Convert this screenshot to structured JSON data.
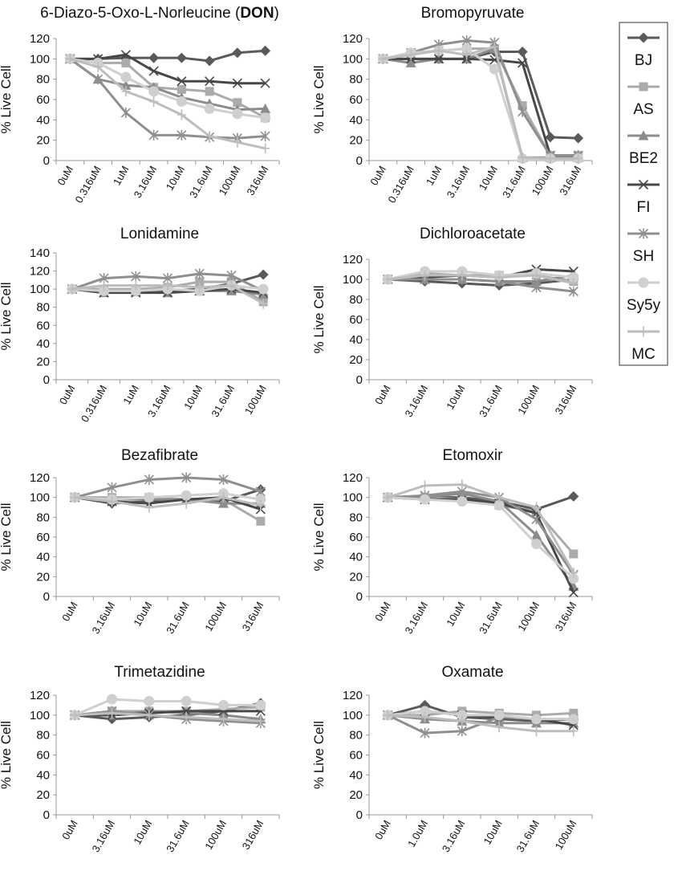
{
  "legend": {
    "position": "right",
    "entries": [
      {
        "name": "BJ",
        "color": "#5a5a5a",
        "marker": "diamond"
      },
      {
        "name": "AS",
        "color": "#ababab",
        "marker": "square"
      },
      {
        "name": "BE2",
        "color": "#8c8c8c",
        "marker": "triangle"
      },
      {
        "name": "FI",
        "color": "#474747",
        "marker": "x"
      },
      {
        "name": "SH",
        "color": "#8f8f8f",
        "marker": "asterisk"
      },
      {
        "name": "Sy5y",
        "color": "#cfcfcf",
        "marker": "circle"
      },
      {
        "name": "MC",
        "color": "#bdbdbd",
        "marker": "plus"
      }
    ]
  },
  "chart_data": [
    {
      "type": "line",
      "title": "6-Diazo-5-Oxo-L-Norleucine (DON)",
      "title_parts": [
        "6-Diazo-5-Oxo-L-Norleucine (",
        "DON",
        ")"
      ],
      "ylabel": "% Live Cell",
      "ylim": [
        0,
        120
      ],
      "yticks": [
        0,
        20,
        40,
        60,
        80,
        100,
        120
      ],
      "categories": [
        "0uM",
        "0.316uM",
        "1uM",
        "3.16uM",
        "10uM",
        "31.6uM",
        "100uM",
        "316uM"
      ],
      "series": [
        {
          "name": "BJ",
          "values": [
            100,
            100,
            101,
            101,
            101,
            98,
            106,
            108
          ]
        },
        {
          "name": "AS",
          "values": [
            100,
            96,
            96,
            72,
            70,
            68,
            57,
            42
          ]
        },
        {
          "name": "BE2",
          "values": [
            100,
            80,
            74,
            72,
            62,
            56,
            50,
            51
          ]
        },
        {
          "name": "FI",
          "values": [
            100,
            100,
            104,
            88,
            78,
            78,
            76,
            76
          ]
        },
        {
          "name": "SH",
          "values": [
            100,
            80,
            47,
            25,
            25,
            23,
            22,
            24
          ]
        },
        {
          "name": "Sy5y",
          "values": [
            100,
            96,
            82,
            68,
            58,
            51,
            46,
            42
          ]
        },
        {
          "name": "MC",
          "values": [
            100,
            92,
            68,
            58,
            45,
            24,
            18,
            12
          ]
        }
      ]
    },
    {
      "type": "line",
      "title": "Bromopyruvate",
      "ylabel": "% Live Cell",
      "ylim": [
        0,
        120
      ],
      "yticks": [
        0,
        20,
        40,
        60,
        80,
        100,
        120
      ],
      "categories": [
        "0uM",
        "0.316uM",
        "1uM",
        "3.16uM",
        "10uM",
        "31.6uM",
        "100uM",
        "316uM"
      ],
      "series": [
        {
          "name": "BJ",
          "values": [
            100,
            100,
            100,
            100,
            107,
            107,
            23,
            22
          ]
        },
        {
          "name": "AS",
          "values": [
            100,
            106,
            108,
            110,
            110,
            54,
            5,
            5
          ]
        },
        {
          "name": "BE2",
          "values": [
            100,
            96,
            100,
            100,
            110,
            3,
            3,
            3
          ]
        },
        {
          "name": "FI",
          "values": [
            100,
            100,
            100,
            100,
            99,
            96,
            5,
            5
          ]
        },
        {
          "name": "SH",
          "values": [
            100,
            106,
            114,
            118,
            116,
            48,
            5,
            5
          ]
        },
        {
          "name": "Sy5y",
          "values": [
            100,
            106,
            108,
            110,
            90,
            2,
            2,
            2
          ]
        },
        {
          "name": "MC",
          "values": [
            100,
            104,
            108,
            104,
            112,
            3,
            2,
            2
          ]
        }
      ]
    },
    {
      "type": "line",
      "title": "Lonidamine",
      "ylabel": "% Live Cell",
      "ylim": [
        0,
        140
      ],
      "yticks": [
        0,
        20,
        40,
        60,
        80,
        100,
        120,
        140
      ],
      "categories": [
        "0uM",
        "0.316uM",
        "1uM",
        "3.16uM",
        "10uM",
        "31.6uM",
        "100uM"
      ],
      "series": [
        {
          "name": "BJ",
          "values": [
            100,
            98,
            98,
            98,
            100,
            106,
            116
          ]
        },
        {
          "name": "AS",
          "values": [
            100,
            100,
            100,
            102,
            108,
            108,
            86
          ]
        },
        {
          "name": "BE2",
          "values": [
            100,
            96,
            97,
            96,
            98,
            98,
            94
          ]
        },
        {
          "name": "FI",
          "values": [
            100,
            96,
            96,
            96,
            98,
            100,
            96
          ]
        },
        {
          "name": "SH",
          "values": [
            100,
            112,
            114,
            112,
            117,
            115,
            98
          ]
        },
        {
          "name": "Sy5y",
          "values": [
            100,
            98,
            98,
            100,
            98,
            104,
            100
          ]
        },
        {
          "name": "MC",
          "values": [
            100,
            104,
            104,
            104,
            102,
            104,
            84
          ]
        }
      ]
    },
    {
      "type": "line",
      "title": "Dichloroacetate",
      "ylabel": "% Live Cell",
      "ylim": [
        0,
        120
      ],
      "yticks": [
        0,
        20,
        40,
        60,
        80,
        100,
        120
      ],
      "categories": [
        "0uM",
        "3.16uM",
        "10uM",
        "31.6uM",
        "100uM",
        "316uM"
      ],
      "series": [
        {
          "name": "BJ",
          "values": [
            100,
            98,
            96,
            94,
            96,
            100
          ]
        },
        {
          "name": "AS",
          "values": [
            100,
            106,
            104,
            104,
            104,
            98
          ]
        },
        {
          "name": "BE2",
          "values": [
            100,
            100,
            100,
            98,
            98,
            104
          ]
        },
        {
          "name": "FI",
          "values": [
            100,
            102,
            104,
            102,
            110,
            108
          ]
        },
        {
          "name": "SH",
          "values": [
            100,
            100,
            100,
            98,
            92,
            88
          ]
        },
        {
          "name": "Sy5y",
          "values": [
            100,
            108,
            108,
            104,
            106,
            102
          ]
        },
        {
          "name": "MC",
          "values": [
            100,
            104,
            104,
            102,
            104,
            96
          ]
        }
      ]
    },
    {
      "type": "line",
      "title": "Bezafibrate",
      "ylabel": "% Live Cell",
      "ylim": [
        0,
        120
      ],
      "yticks": [
        0,
        20,
        40,
        60,
        80,
        100,
        120
      ],
      "categories": [
        "0uM",
        "3.16uM",
        "10uM",
        "31.6uM",
        "100uM",
        "316uM"
      ],
      "series": [
        {
          "name": "BJ",
          "values": [
            100,
            94,
            96,
            98,
            96,
            108
          ]
        },
        {
          "name": "AS",
          "values": [
            100,
            100,
            100,
            98,
            98,
            76
          ]
        },
        {
          "name": "BE2",
          "values": [
            100,
            98,
            98,
            98,
            94,
            94
          ]
        },
        {
          "name": "FI",
          "values": [
            100,
            96,
            94,
            98,
            100,
            88
          ]
        },
        {
          "name": "SH",
          "values": [
            100,
            110,
            118,
            120,
            118,
            106
          ]
        },
        {
          "name": "Sy5y",
          "values": [
            100,
            98,
            100,
            102,
            104,
            98
          ]
        },
        {
          "name": "MC",
          "values": [
            100,
            96,
            90,
            94,
            100,
            92
          ]
        }
      ]
    },
    {
      "type": "line",
      "title": "Etomoxir",
      "ylabel": "% Live Cell",
      "ylim": [
        0,
        120
      ],
      "yticks": [
        0,
        20,
        40,
        60,
        80,
        100,
        120
      ],
      "categories": [
        "0uM",
        "3.16uM",
        "10uM",
        "31.6uM",
        "100uM",
        "316uM"
      ],
      "series": [
        {
          "name": "BJ",
          "values": [
            100,
            100,
            100,
            96,
            88,
            101
          ]
        },
        {
          "name": "AS",
          "values": [
            100,
            100,
            98,
            92,
            86,
            43
          ]
        },
        {
          "name": "BE2",
          "values": [
            100,
            100,
            104,
            96,
            62,
            10
          ]
        },
        {
          "name": "FI",
          "values": [
            100,
            98,
            98,
            94,
            84,
            4
          ]
        },
        {
          "name": "SH",
          "values": [
            100,
            102,
            106,
            100,
            78,
            22
          ]
        },
        {
          "name": "Sy5y",
          "values": [
            100,
            98,
            96,
            92,
            53,
            18
          ]
        },
        {
          "name": "MC",
          "values": [
            100,
            112,
            113,
            100,
            90,
            24
          ]
        }
      ]
    },
    {
      "type": "line",
      "title": "Trimetazidine",
      "ylabel": "% Live Cell",
      "ylim": [
        0,
        120
      ],
      "yticks": [
        0,
        20,
        40,
        60,
        80,
        100,
        120
      ],
      "categories": [
        "0uM",
        "3.16uM",
        "10uM",
        "31.6uM",
        "100uM",
        "316uM"
      ],
      "series": [
        {
          "name": "BJ",
          "values": [
            100,
            96,
            98,
            100,
            104,
            112
          ]
        },
        {
          "name": "AS",
          "values": [
            100,
            104,
            104,
            104,
            106,
            108
          ]
        },
        {
          "name": "BE2",
          "values": [
            100,
            100,
            104,
            102,
            100,
            96
          ]
        },
        {
          "name": "FI",
          "values": [
            100,
            100,
            102,
            104,
            104,
            104
          ]
        },
        {
          "name": "SH",
          "values": [
            100,
            104,
            100,
            96,
            94,
            92
          ]
        },
        {
          "name": "Sy5y",
          "values": [
            100,
            116,
            114,
            114,
            110,
            110
          ]
        },
        {
          "name": "MC",
          "values": [
            100,
            102,
            100,
            98,
            96,
            94
          ]
        }
      ]
    },
    {
      "type": "line",
      "title": "Oxamate",
      "ylabel": "% Live Cell",
      "ylim": [
        0,
        120
      ],
      "yticks": [
        0,
        20,
        40,
        60,
        80,
        100,
        120
      ],
      "categories": [
        "0uM",
        "1.0uM",
        "3.16uM",
        "10uM",
        "31.6uM",
        "100uM"
      ],
      "series": [
        {
          "name": "BJ",
          "values": [
            100,
            110,
            98,
            96,
            94,
            96
          ]
        },
        {
          "name": "AS",
          "values": [
            100,
            100,
            104,
            102,
            100,
            102
          ]
        },
        {
          "name": "BE2",
          "values": [
            100,
            96,
            94,
            92,
            92,
            92
          ]
        },
        {
          "name": "FI",
          "values": [
            100,
            104,
            100,
            98,
            96,
            90
          ]
        },
        {
          "name": "SH",
          "values": [
            100,
            82,
            84,
            98,
            96,
            96
          ]
        },
        {
          "name": "Sy5y",
          "values": [
            100,
            104,
            100,
            100,
            96,
            96
          ]
        },
        {
          "name": "MC",
          "values": [
            100,
            98,
            94,
            88,
            84,
            84
          ]
        }
      ]
    }
  ]
}
